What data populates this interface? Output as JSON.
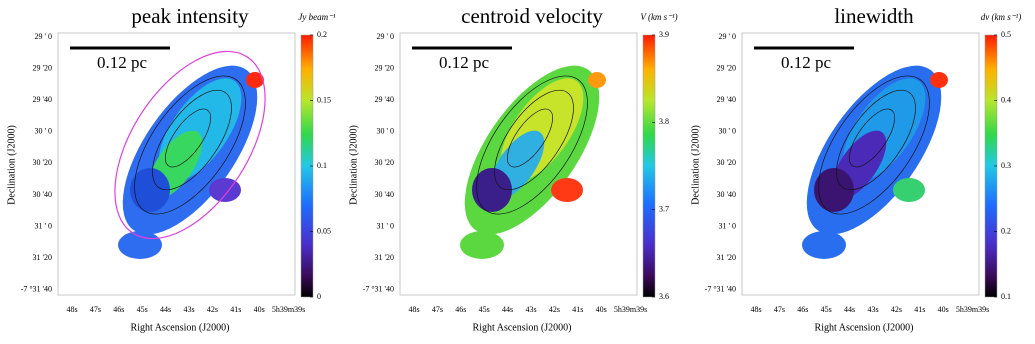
{
  "panels": [
    {
      "title": "peak intensity",
      "colorbar_label": "Jy beam⁻¹",
      "colorbar_ticks": [
        "0",
        "0.05",
        "0.1",
        "0.15",
        "0.2"
      ],
      "scale_bar": "0.12 pc"
    },
    {
      "title": "centroid velocity",
      "colorbar_label": "V (km s⁻¹)",
      "colorbar_ticks": [
        "3.6",
        "3.7",
        "3.8",
        "3.9"
      ],
      "scale_bar": "0.12 pc"
    },
    {
      "title": "linewidth",
      "colorbar_label": "dv (km s⁻¹)",
      "colorbar_ticks": [
        "0.1",
        "0.2",
        "0.3",
        "0.4",
        "0.5"
      ],
      "scale_bar": "0.12 pc"
    }
  ],
  "y_axis": {
    "label": "Declination (J2000)",
    "ticks": [
      "29 ' 0",
      "29 '20",
      "29 '40",
      "30 ' 0",
      "30 '20",
      "30 '40",
      "31 ' 0",
      "31 '20",
      "-7 °31 '40"
    ]
  },
  "x_axis": {
    "label": "Right Ascension (J2000)",
    "ticks": [
      "48s",
      "47s",
      "46s",
      "45s",
      "44s",
      "43s",
      "42s",
      "41s",
      "40s",
      "5h39m39s"
    ]
  }
}
